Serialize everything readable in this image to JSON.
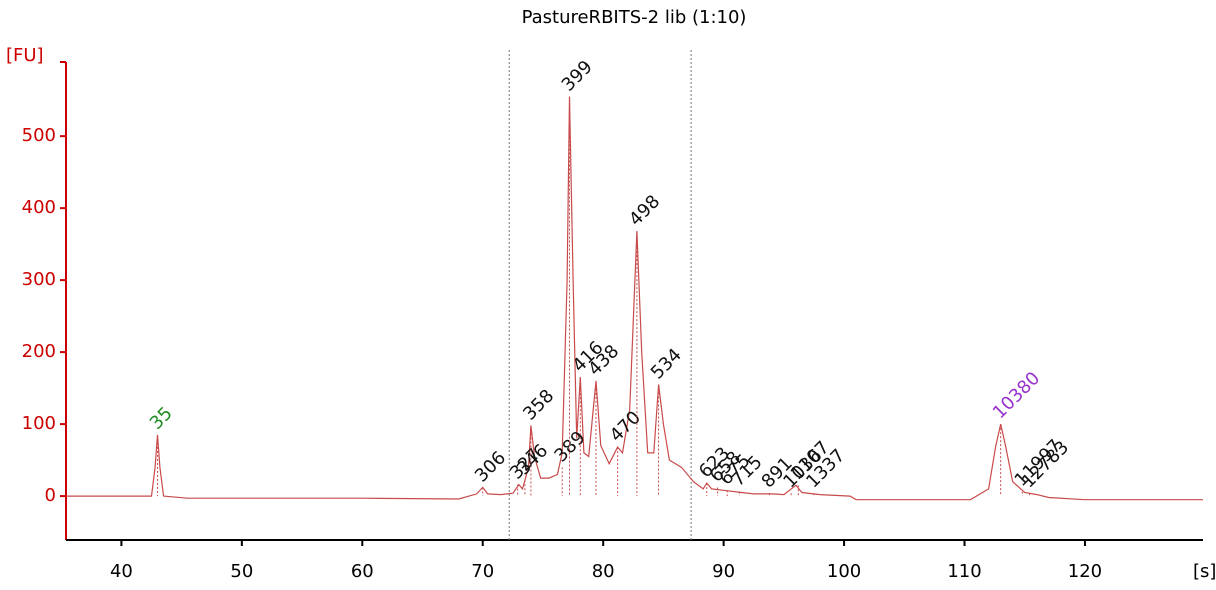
{
  "chart_data": {
    "type": "line",
    "title": "PastureRBITS-2 lib (1:10)",
    "ylabel": "[FU]",
    "xlabel": "[s]",
    "axis_color": "#cc0000",
    "color": "#c84a4a",
    "xlim": [
      35.4,
      129.8
    ],
    "ylim": [
      -61,
      603
    ],
    "xticks": [
      40,
      50,
      60,
      70,
      80,
      90,
      100,
      110,
      120
    ],
    "yticks": [
      0,
      100,
      200,
      300,
      400,
      500
    ],
    "markers": [
      72.2,
      87.3
    ],
    "series": [
      {
        "color": "#c84a4a",
        "x": [
          35.5,
          42.5,
          42.8,
          43.0,
          43.2,
          43.5,
          45.5,
          60,
          68,
          69.5,
          70,
          70.4,
          71.5,
          72.5,
          73.0,
          73.3,
          73.8,
          74.0,
          74.3,
          74.8,
          75.5,
          76.2,
          76.6,
          77.0,
          77.2,
          77.5,
          77.8,
          78.1,
          78.4,
          78.8,
          79.4,
          79.8,
          80.5,
          81.2,
          81.6,
          82.2,
          82.8,
          83.2,
          83.7,
          84.2,
          84.6,
          85.0,
          85.5,
          86.5,
          87.5,
          88.3,
          88.6,
          89,
          90,
          91.5,
          92.5,
          94,
          95,
          96,
          96.5,
          98,
          100.5,
          101,
          110.5,
          112,
          112.6,
          113,
          113.4,
          114,
          115,
          116,
          117,
          120,
          129.8
        ],
        "values": [
          0,
          0,
          40,
          85,
          40,
          0,
          -3,
          -3,
          -4,
          3,
          12,
          3,
          2,
          4,
          16,
          10,
          40,
          98,
          55,
          25,
          25,
          30,
          60,
          300,
          555,
          300,
          80,
          165,
          60,
          55,
          160,
          70,
          45,
          68,
          60,
          120,
          368,
          200,
          60,
          60,
          155,
          100,
          50,
          40,
          20,
          10,
          18,
          10,
          8,
          5,
          3,
          3,
          2,
          15,
          5,
          2,
          0,
          -5,
          -5,
          10,
          70,
          100,
          70,
          20,
          5,
          2,
          -2,
          -5,
          -5
        ]
      }
    ],
    "peaks": [
      {
        "text": "35",
        "x": 43.0,
        "y": 85,
        "color": "#228b22"
      },
      {
        "text": "306",
        "x": 70.0,
        "y": 12,
        "color": "#111111"
      },
      {
        "text": "327",
        "x": 72.9,
        "y": 16,
        "color": "#111111"
      },
      {
        "text": "346",
        "x": 73.5,
        "y": 22,
        "color": "#111111"
      },
      {
        "text": "358",
        "x": 74.0,
        "y": 98,
        "color": "#111111"
      },
      {
        "text": "389",
        "x": 76.6,
        "y": 40,
        "color": "#111111"
      },
      {
        "text": "399",
        "x": 77.2,
        "y": 555,
        "color": "#111111"
      },
      {
        "text": "416",
        "x": 78.1,
        "y": 165,
        "color": "#111111"
      },
      {
        "text": "438",
        "x": 79.4,
        "y": 160,
        "color": "#111111"
      },
      {
        "text": "470",
        "x": 81.2,
        "y": 68,
        "color": "#111111"
      },
      {
        "text": "498",
        "x": 82.8,
        "y": 368,
        "color": "#111111"
      },
      {
        "text": "534",
        "x": 84.6,
        "y": 155,
        "color": "#111111"
      },
      {
        "text": "623",
        "x": 88.6,
        "y": 18,
        "color": "#111111"
      },
      {
        "text": "658",
        "x": 89.5,
        "y": 12,
        "color": "#111111"
      },
      {
        "text": "675",
        "x": 90.3,
        "y": 8,
        "color": "#111111"
      },
      {
        "text": "715",
        "x": 91.3,
        "y": 6,
        "color": "#111111"
      },
      {
        "text": "891",
        "x": 93.8,
        "y": 4,
        "color": "#111111"
      },
      {
        "text": "1036",
        "x": 95.6,
        "y": 4,
        "color": "#111111"
      },
      {
        "text": "1107",
        "x": 96.2,
        "y": 15,
        "color": "#111111"
      },
      {
        "text": "1337",
        "x": 97.5,
        "y": 4,
        "color": "#111111"
      },
      {
        "text": "10380",
        "x": 113.0,
        "y": 100,
        "color": "#9932cc"
      },
      {
        "text": "11997",
        "x": 114.8,
        "y": 6,
        "color": "#111111"
      },
      {
        "text": "12783",
        "x": 115.4,
        "y": 4,
        "color": "#111111"
      }
    ]
  }
}
